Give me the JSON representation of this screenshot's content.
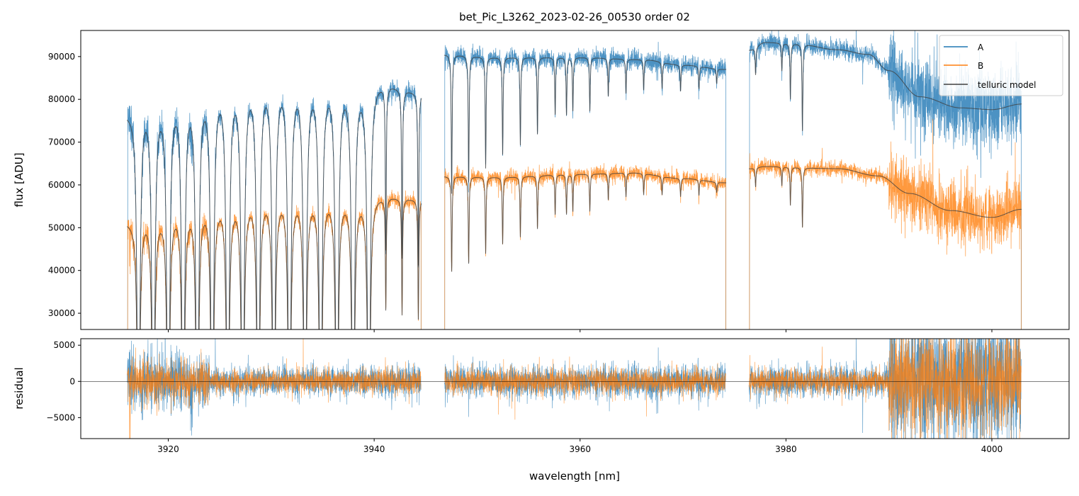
{
  "chart_data": {
    "type": "line",
    "title": "bet_Pic_L3262_2023-02-26_00530  order 02",
    "xlabel": "wavelength [nm]",
    "ylabel_top": "flux [ADU]",
    "ylabel_bottom": "residual",
    "xlim": [
      3911.5,
      4007.5
    ],
    "ylim_top": [
      26200,
      96100
    ],
    "ylim_bottom": [
      -7900,
      5900
    ],
    "xticks": [
      3920,
      3940,
      3960,
      3980,
      4000
    ],
    "yticks_top": [
      30000,
      40000,
      50000,
      60000,
      70000,
      80000,
      90000
    ],
    "yticks_bottom": [
      -5000,
      0,
      5000
    ],
    "grid": false,
    "legend_position": "top-right",
    "series": [
      {
        "name": "A",
        "color": "#1f77b4"
      },
      {
        "name": "B",
        "color": "#ff7f0e"
      },
      {
        "name": "telluric model",
        "color": "#404040"
      }
    ],
    "segments": [
      [
        3916.0,
        3944.6
      ],
      [
        3946.8,
        3974.2
      ],
      [
        3976.4,
        4002.9
      ]
    ],
    "continuum_A": [
      [
        3916.0,
        77000
      ],
      [
        3918,
        80000
      ],
      [
        3922,
        82500
      ],
      [
        3926,
        84500
      ],
      [
        3930,
        86000
      ],
      [
        3935,
        85200
      ],
      [
        3940,
        84000
      ],
      [
        3944.6,
        81500
      ],
      [
        3946.8,
        90500
      ],
      [
        3952,
        89800
      ],
      [
        3960,
        89800
      ],
      [
        3966,
        89300
      ],
      [
        3970,
        88000
      ],
      [
        3974.2,
        87000
      ],
      [
        3976.4,
        91500
      ],
      [
        3978,
        93300
      ],
      [
        3981,
        93000
      ],
      [
        3985,
        91600
      ],
      [
        3988,
        90500
      ],
      [
        3990,
        86700
      ],
      [
        3993,
        80600
      ],
      [
        3997,
        78000
      ],
      [
        4000,
        77600
      ],
      [
        4002.9,
        78900
      ]
    ],
    "continuum_B": [
      [
        3916.0,
        51500
      ],
      [
        3918,
        53500
      ],
      [
        3922,
        55800
      ],
      [
        3926,
        57000
      ],
      [
        3930,
        58200
      ],
      [
        3935,
        58000
      ],
      [
        3940,
        57500
      ],
      [
        3944.6,
        56500
      ],
      [
        3946.8,
        62000
      ],
      [
        3952,
        61800
      ],
      [
        3960,
        62500
      ],
      [
        3965,
        62800
      ],
      [
        3970,
        61500
      ],
      [
        3974.2,
        60500
      ],
      [
        3976.4,
        63800
      ],
      [
        3978,
        64300
      ],
      [
        3985,
        63800
      ],
      [
        3989,
        62100
      ],
      [
        3992,
        58000
      ],
      [
        3996,
        54000
      ],
      [
        4000,
        52400
      ],
      [
        4002.9,
        54300
      ]
    ],
    "telluric_lines": [
      [
        3917.11,
        0.999
      ],
      [
        3918.55,
        0.999
      ],
      [
        3920.0,
        0.999
      ],
      [
        3921.45,
        0.999
      ],
      [
        3922.82,
        0.999
      ],
      [
        3924.27,
        0.999
      ],
      [
        3925.78,
        0.999
      ],
      [
        3927.23,
        0.999
      ],
      [
        3928.74,
        0.999
      ],
      [
        3930.25,
        0.999
      ],
      [
        3931.77,
        0.999
      ],
      [
        3933.28,
        0.999
      ],
      [
        3934.8,
        0.999
      ],
      [
        3936.38,
        0.999
      ],
      [
        3937.96,
        0.999
      ],
      [
        3939.48,
        0.999
      ],
      [
        3941.13,
        0.46
      ],
      [
        3942.71,
        0.48
      ],
      [
        3944.29,
        0.5
      ],
      [
        3947.53,
        0.36
      ],
      [
        3949.18,
        0.33
      ],
      [
        3950.83,
        0.29
      ],
      [
        3952.48,
        0.255
      ],
      [
        3954.2,
        0.23
      ],
      [
        3955.86,
        0.2
      ],
      [
        3957.58,
        0.15
      ],
      [
        3958.68,
        0.15
      ],
      [
        3959.3,
        0.14
      ],
      [
        3960.95,
        0.14
      ],
      [
        3962.74,
        0.1
      ],
      [
        3964.46,
        0.09
      ],
      [
        3966.18,
        0.08
      ],
      [
        3967.97,
        0.07
      ],
      [
        3969.76,
        0.07
      ],
      [
        3971.55,
        0.06
      ],
      [
        3973.27,
        0.04
      ],
      [
        3977.05,
        0.07
      ],
      [
        3979.6,
        0.07
      ],
      [
        3980.43,
        0.14
      ],
      [
        3981.6,
        0.22
      ]
    ],
    "residual_rms": [
      {
        "range": [
          3916.0,
          3924.0
        ],
        "rms": 2200
      },
      {
        "range": [
          3924.0,
          3990.0
        ],
        "rms": 1100
      },
      {
        "range": [
          3990.0,
          4002.9
        ],
        "rms": 4500
      }
    ]
  }
}
